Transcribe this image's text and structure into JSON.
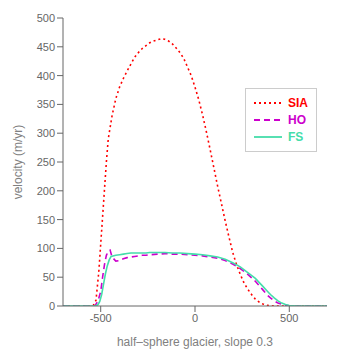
{
  "chart_data": {
    "type": "line",
    "xlabel": "half–sphere glacier, slope 0.3",
    "ylabel": "velocity (m/yr)",
    "xlim": [
      -700,
      700
    ],
    "ylim": [
      0,
      500
    ],
    "xticks": [
      -500,
      0,
      500
    ],
    "yticks": [
      0,
      50,
      100,
      150,
      200,
      250,
      300,
      350,
      400,
      450,
      500
    ],
    "grid": false,
    "legend": "upper right",
    "series": [
      {
        "name": "SIA",
        "color": "#ff0000",
        "line_style": "dotted",
        "x": [
          -700,
          -560,
          -540,
          -525,
          -510,
          -490,
          -470,
          -460,
          -450,
          -440,
          -420,
          -400,
          -380,
          -360,
          -340,
          -320,
          -300,
          -280,
          -260,
          -240,
          -220,
          -200,
          -180,
          -160,
          -140,
          -120,
          -100,
          -80,
          -60,
          -40,
          -20,
          0,
          20,
          40,
          60,
          80,
          100,
          120,
          140,
          160,
          180,
          200,
          220,
          240,
          260,
          280,
          300,
          320,
          340,
          360,
          380,
          400,
          420,
          440,
          460,
          480,
          500,
          520,
          600,
          700
        ],
        "values": [
          0,
          0,
          0.5,
          10,
          60,
          155,
          250,
          290,
          310,
          330,
          360,
          380,
          395,
          408,
          420,
          432,
          440,
          447,
          452,
          457,
          460,
          462,
          464,
          463,
          460,
          455,
          448,
          440,
          430,
          415,
          400,
          380,
          358,
          332,
          303,
          272,
          240,
          208,
          178,
          148,
          120,
          93,
          72,
          55,
          40,
          29,
          20,
          12,
          7,
          3.5,
          1.5,
          0.5,
          0,
          0,
          0,
          0,
          0,
          0,
          0,
          0
        ]
      },
      {
        "name": "HO",
        "color": "#cc00cc",
        "line_style": "dashed",
        "x": [
          -700,
          -560,
          -545,
          -530,
          -515,
          -500,
          -490,
          -480,
          -470,
          -460,
          -450,
          -440,
          -420,
          -400,
          -380,
          -360,
          -340,
          -320,
          -300,
          -280,
          -260,
          -240,
          -200,
          -160,
          -120,
          -80,
          -40,
          0,
          40,
          80,
          120,
          160,
          200,
          240,
          280,
          320,
          360,
          380,
          400,
          420,
          440,
          460,
          480,
          500,
          520,
          540,
          600,
          700
        ],
        "values": [
          0,
          0,
          0,
          1,
          8,
          25,
          50,
          72,
          88,
          95,
          97,
          85,
          78,
          79,
          82,
          84,
          85,
          86,
          87,
          88,
          88,
          89,
          90,
          91,
          90,
          90,
          89,
          88,
          87,
          85,
          83,
          79,
          73,
          65,
          55,
          43,
          28,
          20,
          14,
          9,
          5,
          3,
          1.5,
          0.5,
          0,
          0,
          0,
          0
        ]
      },
      {
        "name": "FS",
        "color": "#44ddaa",
        "line_style": "solid",
        "x": [
          -700,
          -560,
          -545,
          -530,
          -515,
          -505,
          -495,
          -485,
          -475,
          -465,
          -455,
          -445,
          -420,
          -400,
          -380,
          -360,
          -340,
          -320,
          -300,
          -280,
          -260,
          -240,
          -200,
          -160,
          -120,
          -80,
          -40,
          0,
          40,
          80,
          120,
          160,
          200,
          240,
          280,
          320,
          360,
          380,
          400,
          420,
          440,
          460,
          480,
          500,
          540,
          600,
          700
        ],
        "values": [
          0,
          0,
          0,
          0,
          2,
          8,
          20,
          38,
          56,
          70,
          80,
          86,
          88,
          89,
          90,
          91,
          92,
          92,
          92,
          92,
          92,
          93,
          93,
          93,
          92,
          92,
          91,
          90,
          89,
          87,
          85,
          81,
          75,
          68,
          58,
          48,
          34,
          27,
          20,
          14,
          9,
          5,
          2.5,
          1,
          0,
          0,
          0
        ]
      }
    ]
  }
}
